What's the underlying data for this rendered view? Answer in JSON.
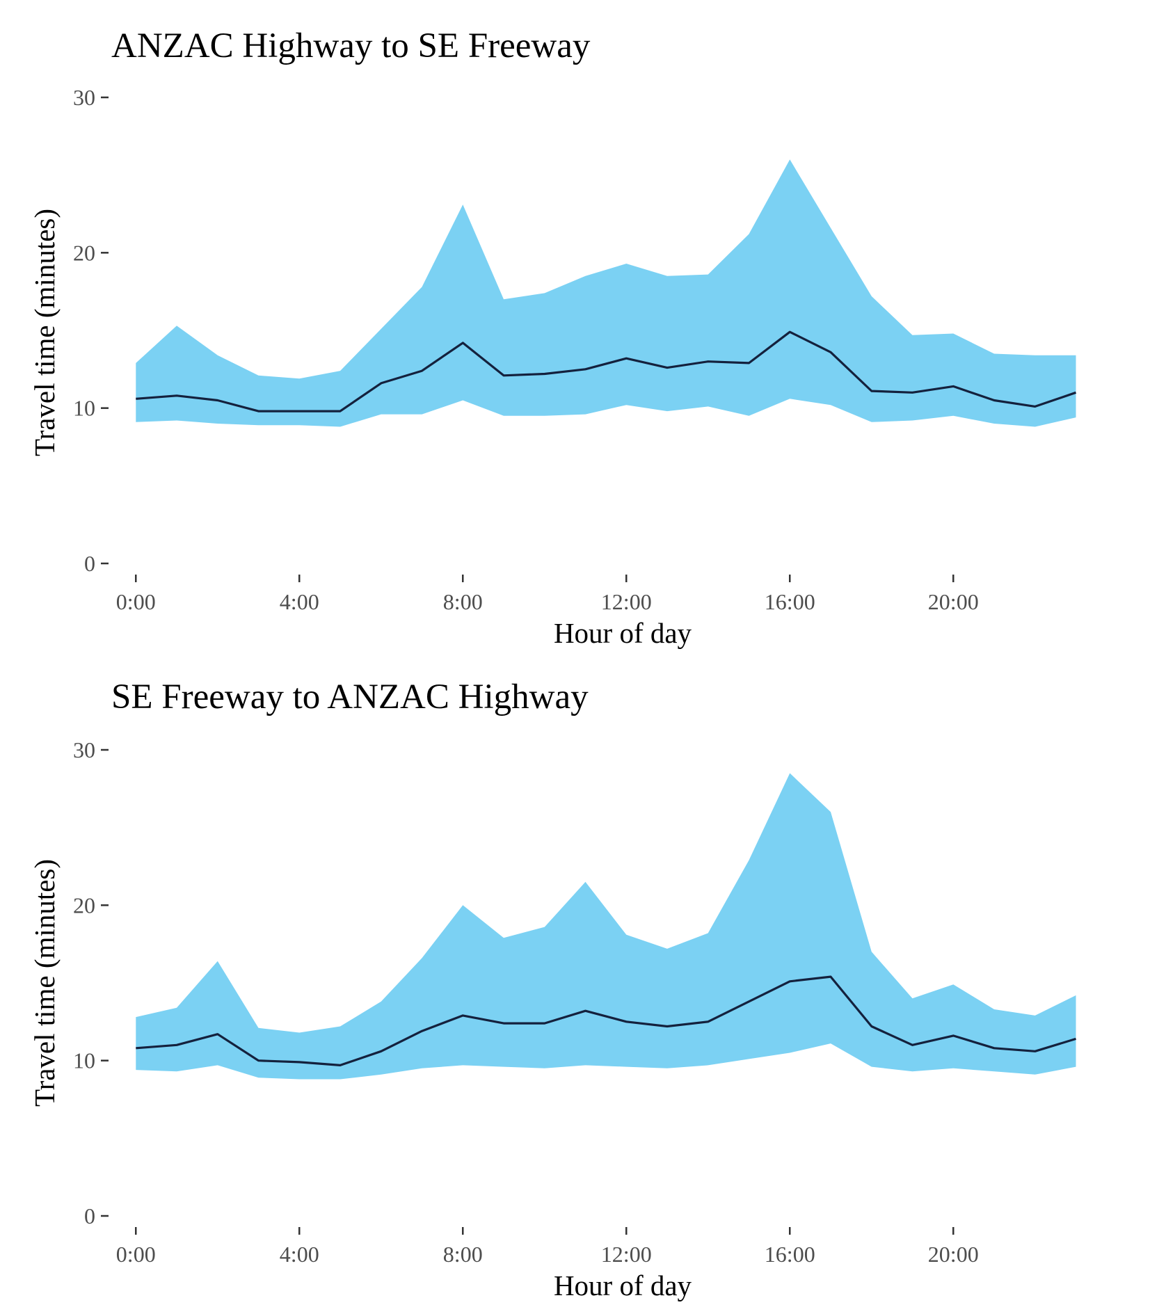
{
  "chart_data": [
    {
      "type": "area",
      "title": "ANZAC Highway to SE Freeway",
      "xlabel": "Hour of day",
      "ylabel": "Travel time (minutes)",
      "x": [
        0,
        1,
        2,
        3,
        4,
        5,
        6,
        7,
        8,
        9,
        10,
        11,
        12,
        13,
        14,
        15,
        16,
        17,
        18,
        19,
        20,
        21,
        22,
        23
      ],
      "xticks": [
        0,
        4,
        8,
        12,
        16,
        20
      ],
      "xtick_labels": [
        "0:00",
        "4:00",
        "8:00",
        "12:00",
        "16:00",
        "20:00"
      ],
      "xlim": [
        -0.6,
        23.4
      ],
      "yticks": [
        0,
        10,
        20,
        30
      ],
      "ytick_labels": [
        "0",
        "10",
        "20",
        "30"
      ],
      "ylim": [
        0,
        30
      ],
      "grid": false,
      "series": [
        {
          "role": "median-line",
          "values": [
            10.6,
            10.8,
            10.5,
            9.8,
            9.8,
            9.8,
            11.6,
            12.4,
            14.2,
            12.1,
            12.2,
            12.5,
            13.2,
            12.6,
            13.0,
            12.9,
            14.9,
            13.6,
            11.1,
            11.0,
            11.4,
            10.5,
            10.1,
            11.0
          ]
        },
        {
          "role": "band-upper",
          "values": [
            12.9,
            15.3,
            13.4,
            12.1,
            11.9,
            12.4,
            15.1,
            17.8,
            23.1,
            17.0,
            17.4,
            18.5,
            19.3,
            18.5,
            18.6,
            21.2,
            26.0,
            21.6,
            17.2,
            14.7,
            14.8,
            13.5,
            13.4,
            13.4
          ]
        },
        {
          "role": "band-lower",
          "values": [
            9.1,
            9.2,
            9.0,
            8.9,
            8.9,
            8.8,
            9.6,
            9.6,
            10.5,
            9.5,
            9.5,
            9.6,
            10.2,
            9.8,
            10.1,
            9.5,
            10.6,
            10.2,
            9.1,
            9.2,
            9.5,
            9.0,
            8.8,
            9.4
          ]
        }
      ]
    },
    {
      "type": "area",
      "title": "SE Freeway to ANZAC Highway",
      "xlabel": "Hour of day",
      "ylabel": "Travel time (minutes)",
      "x": [
        0,
        1,
        2,
        3,
        4,
        5,
        6,
        7,
        8,
        9,
        10,
        11,
        12,
        13,
        14,
        15,
        16,
        17,
        18,
        19,
        20,
        21,
        22,
        23
      ],
      "xticks": [
        0,
        4,
        8,
        12,
        16,
        20
      ],
      "xtick_labels": [
        "0:00",
        "4:00",
        "8:00",
        "12:00",
        "16:00",
        "20:00"
      ],
      "xlim": [
        -0.6,
        23.4
      ],
      "yticks": [
        0,
        10,
        20,
        30
      ],
      "ytick_labels": [
        "0",
        "10",
        "20",
        "30"
      ],
      "ylim": [
        0,
        30
      ],
      "grid": false,
      "series": [
        {
          "role": "median-line",
          "values": [
            10.8,
            11.0,
            11.7,
            10.0,
            9.9,
            9.7,
            10.6,
            11.9,
            12.9,
            12.4,
            12.4,
            13.2,
            12.5,
            12.2,
            12.5,
            13.8,
            15.1,
            15.4,
            12.2,
            11.0,
            11.6,
            10.8,
            10.6,
            11.4
          ]
        },
        {
          "role": "band-upper",
          "values": [
            12.8,
            13.4,
            16.4,
            12.1,
            11.8,
            12.2,
            13.8,
            16.6,
            20.0,
            17.9,
            18.6,
            21.5,
            18.1,
            17.2,
            18.2,
            22.9,
            28.5,
            26.0,
            17.0,
            14.0,
            14.9,
            13.3,
            12.9,
            14.2
          ]
        },
        {
          "role": "band-lower",
          "values": [
            9.4,
            9.3,
            9.7,
            8.9,
            8.8,
            8.8,
            9.1,
            9.5,
            9.7,
            9.6,
            9.5,
            9.7,
            9.6,
            9.5,
            9.7,
            10.1,
            10.5,
            11.1,
            9.6,
            9.3,
            9.5,
            9.3,
            9.1,
            9.6
          ]
        }
      ]
    }
  ],
  "colors": {
    "band": "#7bd1f3",
    "line": "#14213d",
    "tick": "#333333",
    "tick_label": "#4d4d4d",
    "text": "#000000"
  }
}
